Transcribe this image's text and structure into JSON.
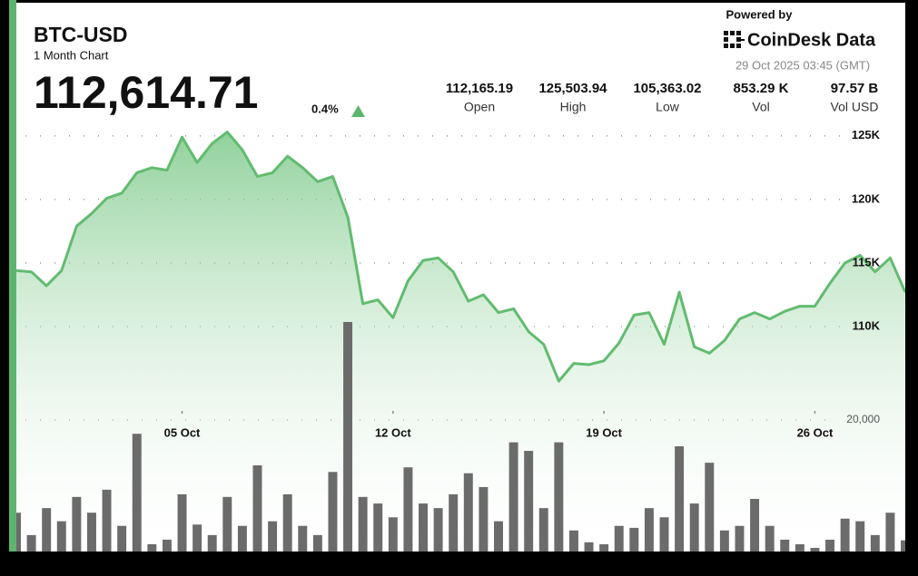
{
  "chart_data": {
    "type": "area",
    "title": "BTC-USD",
    "subtitle": "1 Month Chart",
    "price": "112,614.71",
    "change": "0.4%",
    "powered_by": "Powered by",
    "brand": "CoinDesk Data",
    "timestamp": "29 Oct 2025 03:45 (GMT)",
    "stats": [
      {
        "value": "112,165.19",
        "label": "Open"
      },
      {
        "value": "125,503.94",
        "label": "High"
      },
      {
        "value": "105,363.02",
        "label": "Low"
      },
      {
        "value": "853.29 K",
        "label": "Vol"
      },
      {
        "value": "97.57 B",
        "label": "Vol USD"
      }
    ],
    "x": [
      -0.5,
      0,
      0.5,
      1,
      1.5,
      2,
      2.5,
      3,
      3.5,
      4,
      4.5,
      5,
      5.5,
      6,
      6.5,
      7,
      7.5,
      8,
      8.5,
      9,
      9.5,
      10,
      10.5,
      11,
      11.5,
      12,
      12.5,
      13,
      13.5,
      14,
      14.5,
      15,
      15.5,
      16,
      16.5,
      17,
      17.5,
      18,
      18.5,
      19,
      19.5,
      20,
      20.5,
      21,
      21.5,
      22,
      22.5,
      23,
      23.5,
      24,
      24.5,
      25,
      25.5,
      26,
      26.5,
      27,
      27.5,
      28,
      28.5,
      29
    ],
    "xlim": [
      -0.5,
      29
    ],
    "xticks": [
      {
        "value": 5,
        "label": "05 Oct"
      },
      {
        "value": 12,
        "label": "12 Oct"
      },
      {
        "value": 19,
        "label": "19 Oct"
      },
      {
        "value": 26,
        "label": "26 Oct"
      }
    ],
    "ylim": [
      92300,
      125700
    ],
    "yticks": [
      {
        "value": 110000,
        "label": "110K"
      },
      {
        "value": 115000,
        "label": "115K"
      },
      {
        "value": 120000,
        "label": "120K"
      },
      {
        "value": 125000,
        "label": "125K"
      }
    ],
    "y2lim": [
      0,
      64550
    ],
    "y2ticks": [
      {
        "value": 20000,
        "label": "20,000"
      }
    ],
    "grid": true,
    "series": [
      {
        "type": "area",
        "color": "#62bb70",
        "values": [
          114400,
          114300,
          113200,
          114400,
          117900,
          118900,
          120100,
          120500,
          122100,
          122500,
          122300,
          124900,
          122900,
          124400,
          125300,
          123900,
          121800,
          122100,
          123400,
          122500,
          121400,
          121800,
          118600,
          111800,
          112100,
          110700,
          113600,
          115200,
          115400,
          114300,
          112000,
          112500,
          111100,
          111400,
          109600,
          108600,
          105700,
          107100,
          107000,
          107300,
          108700,
          110900,
          111100,
          108600,
          112700,
          108400,
          107900,
          108900,
          110600,
          111100,
          110600,
          111200,
          111600,
          111600,
          113400,
          115000,
          115600,
          114300,
          115400,
          112700
        ]
      },
      {
        "type": "bar",
        "axis": "y2",
        "color": "#6b6b6b",
        "values": [
          5900,
          2500,
          6600,
          4600,
          8300,
          5900,
          9400,
          3900,
          17900,
          1100,
          1800,
          8700,
          4100,
          2500,
          8300,
          3900,
          13100,
          4600,
          8700,
          3900,
          2500,
          12100,
          34900,
          8300,
          7300,
          5200,
          12800,
          7300,
          6600,
          8700,
          11900,
          9800,
          4600,
          16600,
          15300,
          6600,
          16600,
          3200,
          1400,
          1100,
          3900,
          3600,
          6600,
          5200,
          16000,
          7300,
          13500,
          3200,
          3900,
          8000,
          3900,
          1800,
          1100,
          550,
          1800,
          5000,
          4600,
          2500,
          5900,
          1700
        ]
      }
    ]
  }
}
